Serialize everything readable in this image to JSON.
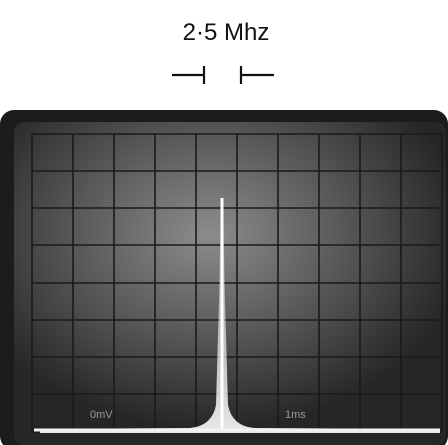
{
  "header": {
    "label": "2·5 Mhz"
  },
  "screen": {
    "labels": [
      "0mV",
      "1ms"
    ]
  }
}
